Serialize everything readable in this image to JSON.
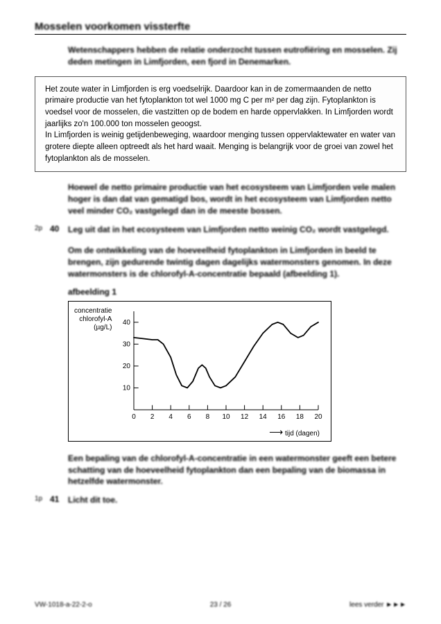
{
  "title": "Mosselen voorkomen vissterfte",
  "intro": "Wetenschappers hebben de relatie onderzocht tussen eutrofiëring en mosselen. Zij deden metingen in Limfjorden, een fjord in Denemarken.",
  "box_text": "Het zoute water in Limfjorden is erg voedselrijk. Daardoor kan in de zomermaanden de netto primaire productie van het fytoplankton tot wel 1000 mg C per m² per dag zijn. Fytoplankton is voedsel voor de mosselen, die vastzitten op de bodem en harde oppervlakken. In Limfjorden wordt jaarlijks zo'n 100.000 ton mosselen geoogst.\nIn Limfjorden is weinig getijdenbeweging, waardoor menging tussen oppervlaktewater en water van grotere diepte alleen optreedt als het hard waait. Menging is belangrijk voor de groei van zowel het fytoplankton als de mosselen.",
  "para1": "Hoewel de netto primaire productie van het ecosysteem van Limfjorden vele malen hoger is dan dat van gematigd bos, wordt in het ecosysteem van Limfjorden netto veel minder CO₂ vastgelegd dan in de meeste bossen.",
  "q40_points": "2p",
  "q40_num": "40",
  "q40_text": "Leg uit dat in het ecosysteem van Limfjorden netto weinig CO₂ wordt vastgelegd.",
  "para2": "Om de ontwikkeling van de hoeveelheid fytoplankton in Limfjorden in beeld te brengen, zijn gedurende twintig dagen dagelijks watermonsters genomen. In deze watermonsters is de chlorofyl-A-concentratie bepaald (afbeelding 1).",
  "fig_label": "afbeelding 1",
  "chart": {
    "type": "line",
    "ylabel": "concentratie\nchlorofyl-A\n(µg/L)",
    "xlabel": "tijd (dagen)",
    "xlim": [
      0,
      20
    ],
    "ylim": [
      0,
      45
    ],
    "xtick_step": 2,
    "yticks": [
      10,
      20,
      30,
      40
    ],
    "line_color": "#000000",
    "line_width": 1.8,
    "tick_color": "#000000",
    "axis_color": "#000000",
    "background_color": "#ffffff",
    "tick_len_frac": 0.025,
    "data": [
      [
        0,
        33
      ],
      [
        1,
        32.5
      ],
      [
        2,
        32
      ],
      [
        2.6,
        32
      ],
      [
        3.2,
        30
      ],
      [
        4,
        24
      ],
      [
        4.6,
        16
      ],
      [
        5.2,
        11
      ],
      [
        5.8,
        10
      ],
      [
        6.4,
        13
      ],
      [
        7,
        19
      ],
      [
        7.4,
        20.5
      ],
      [
        7.8,
        19
      ],
      [
        8.2,
        15
      ],
      [
        8.8,
        11
      ],
      [
        9.4,
        10
      ],
      [
        10,
        11
      ],
      [
        11,
        15
      ],
      [
        12,
        22
      ],
      [
        13,
        29
      ],
      [
        14,
        35
      ],
      [
        15,
        39
      ],
      [
        15.6,
        40
      ],
      [
        16.2,
        39
      ],
      [
        17,
        35
      ],
      [
        17.8,
        33
      ],
      [
        18.4,
        34
      ],
      [
        19.2,
        38
      ],
      [
        20,
        40
      ]
    ]
  },
  "para3": "Een bepaling van de chlorofyl-A-concentratie in een watermonster geeft een betere schatting van de hoeveelheid fytoplankton dan een bepaling van de biomassa in hetzelfde watermonster.",
  "q41_points": "1p",
  "q41_num": "41",
  "q41_text": "Licht dit toe.",
  "footer_left": "VW-1018-a-22-2-o",
  "footer_center": "23 / 26",
  "footer_right": "lees verder ►►►"
}
